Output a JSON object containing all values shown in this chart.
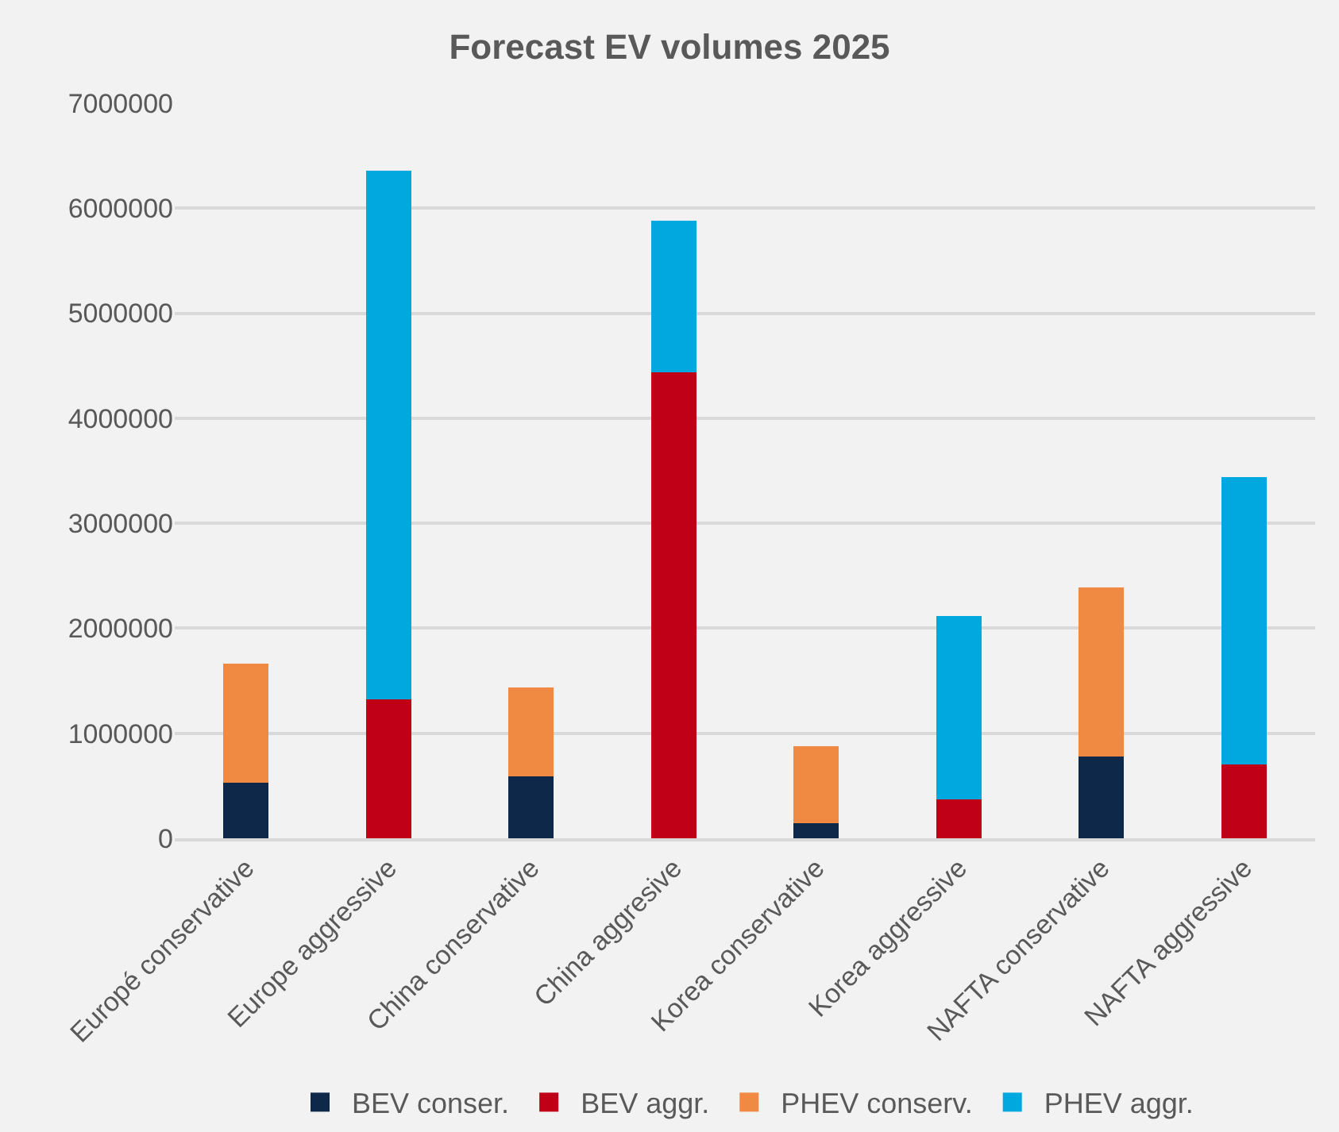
{
  "chart_data": {
    "type": "bar",
    "title": "Forecast EV volumes 2025",
    "categories": [
      "Europé conservative",
      "Europe aggressive",
      "China conservative",
      "China aggresive",
      "Korea conservative",
      "Korea aggressive",
      "NAFTA conservative",
      "NAFTA aggressive"
    ],
    "series": [
      {
        "name": "BEV conser.",
        "color": "#0d2849",
        "values": [
          530000,
          null,
          590000,
          null,
          140000,
          null,
          780000,
          null
        ]
      },
      {
        "name": "BEV aggr.",
        "color": "#c00016",
        "values": [
          null,
          1320000,
          null,
          4440000,
          null,
          370000,
          null,
          700000
        ]
      },
      {
        "name": "PHEV conserv.",
        "color": "#f08a42",
        "values": [
          1130000,
          null,
          850000,
          null,
          740000,
          null,
          1610000,
          null
        ]
      },
      {
        "name": "PHEV aggr.",
        "color": "#00a8e0",
        "values": [
          null,
          5040000,
          null,
          1440000,
          null,
          1750000,
          null,
          2740000
        ]
      }
    ],
    "stacked": true,
    "ylim": [
      0,
      7000000
    ],
    "yticks": [
      0,
      1000000,
      2000000,
      3000000,
      4000000,
      5000000,
      6000000,
      7000000
    ],
    "grid": "y",
    "legend": "bottom"
  }
}
